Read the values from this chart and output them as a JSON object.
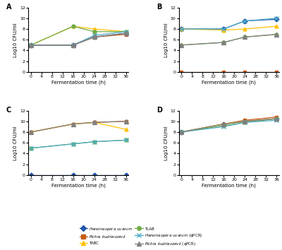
{
  "x": [
    0,
    16,
    24,
    36
  ],
  "panel_A": {
    "hansinaspora": [
      5,
      5,
      6.5,
      7.2
    ],
    "pichia": [
      5,
      5,
      6.5,
      7.0
    ],
    "TABC": [
      5,
      8.5,
      8.0,
      7.5
    ],
    "TLAB": [
      5,
      8.5,
      7.5,
      7.5
    ],
    "hansinaspora_qpcr": [
      5,
      5,
      6.8,
      7.5
    ],
    "pichia_qpcr": [
      5,
      5,
      6.5,
      7.2
    ]
  },
  "panel_B": {
    "hansinaspora": [
      8,
      8,
      9.5,
      9.8
    ],
    "pichia": [
      0,
      0,
      0,
      0
    ],
    "TABC": [
      8,
      7.8,
      8.0,
      8.5
    ],
    "TLAB": [
      5,
      5.5,
      6.5,
      7.0
    ],
    "hansinaspora_qpcr": [
      8,
      8,
      9.5,
      10
    ],
    "pichia_qpcr": [
      5,
      5.5,
      6.5,
      7.0
    ]
  },
  "panel_C": {
    "hansinaspora": [
      0,
      0,
      0,
      0
    ],
    "pichia": [
      8,
      9.5,
      9.8,
      10.0
    ],
    "TABC": [
      8,
      9.5,
      9.8,
      8.5
    ],
    "TLAB": [
      5,
      5.8,
      6.2,
      6.5
    ],
    "hansinaspora_qpcr": [
      5,
      5.8,
      6.2,
      6.5
    ],
    "pichia_qpcr": [
      8,
      9.5,
      9.8,
      10.0
    ]
  },
  "panel_D": {
    "hansinaspora": [
      8,
      9.5,
      10.0,
      10.5
    ],
    "pichia": [
      8,
      9.5,
      10.2,
      10.8
    ],
    "TABC": [
      8,
      9.5,
      10.0,
      10.5
    ],
    "TLAB": [
      8,
      9.2,
      9.8,
      10.5
    ],
    "hansinaspora_qpcr": [
      8,
      9.0,
      9.8,
      10.2
    ],
    "pichia_qpcr": [
      8,
      9.5,
      10.0,
      10.5
    ]
  },
  "colors": {
    "hansinaspora": "#2155a8",
    "pichia": "#c55a11",
    "TABC": "#ffc000",
    "TLAB": "#70ad47",
    "hansinaspora_qpcr": "#4bacc6",
    "pichia_qpcr": "#808080"
  },
  "markers": {
    "hansinaspora": "D",
    "pichia": "s",
    "TABC": "^",
    "TLAB": "o",
    "hansinaspora_qpcr": "x",
    "pichia_qpcr": "^"
  },
  "ylabel": "Log10 CFU/ml",
  "xlabel": "Fermentation time (h)",
  "ylim": [
    0,
    12
  ],
  "yticks": [
    0,
    2,
    4,
    6,
    8,
    10,
    12
  ],
  "xticks": [
    0,
    4,
    8,
    12,
    16,
    20,
    24,
    28,
    32,
    36
  ]
}
